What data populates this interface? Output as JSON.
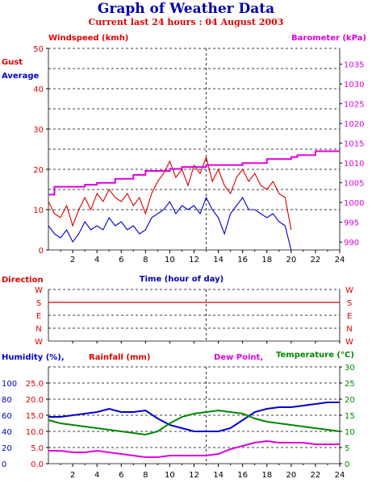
{
  "page": {
    "title": "Graph of Weather Data",
    "subtitle": "Current last 24 hours : 04 August 2003"
  },
  "colors": {
    "gust": "#dd0000",
    "average": "#0000cc",
    "barometer": "#dd00dd",
    "direction": "#dd0000",
    "humidity": "#0000cc",
    "rainfall": "#dd0000",
    "dewpoint": "#dd00dd",
    "temperature": "#008800"
  },
  "chart_data": [
    {
      "type": "line",
      "xlabel": "Time (hour of day)",
      "left_axis_title": "Windspeed (kmh)",
      "right_axis_title": "Barometer (kPa)",
      "series_labels": {
        "gust": "Gust",
        "average": "Average"
      },
      "x_ticks": [
        2,
        4,
        6,
        8,
        10,
        12,
        14,
        16,
        18,
        20,
        22,
        24
      ],
      "y_left_ticks": [
        0,
        10,
        20,
        30,
        40,
        50
      ],
      "y_left_range": [
        0,
        50
      ],
      "y_right_ticks": [
        990,
        995,
        1000,
        1005,
        1010,
        1015,
        1020,
        1025,
        1030,
        1035
      ],
      "y_right_range": [
        988,
        1039
      ],
      "x_range": [
        0,
        24
      ],
      "current_time_marker": 13,
      "gust": {
        "x": [
          0,
          0.5,
          1,
          1.5,
          2,
          2.5,
          3,
          3.5,
          4,
          4.5,
          5,
          5.5,
          6,
          6.5,
          7,
          7.5,
          8,
          8.5,
          9,
          9.5,
          10,
          10.5,
          11,
          11.5,
          12,
          12.5,
          13,
          13.5,
          14,
          14.5,
          15,
          15.5,
          16,
          16.5,
          17,
          17.5,
          18,
          18.5,
          19,
          19.5,
          20
        ],
        "values": [
          12,
          9,
          8,
          11,
          6,
          10,
          13,
          10,
          14,
          12,
          15,
          13,
          12,
          14,
          11,
          13,
          9,
          14,
          17,
          19,
          22,
          18,
          20,
          16,
          21,
          19,
          23,
          17,
          20,
          16,
          14,
          18,
          20,
          17,
          19,
          16,
          15,
          17,
          14,
          13,
          5
        ]
      },
      "average": {
        "x": [
          0,
          0.5,
          1,
          1.5,
          2,
          2.5,
          3,
          3.5,
          4,
          4.5,
          5,
          5.5,
          6,
          6.5,
          7,
          7.5,
          8,
          8.5,
          9,
          9.5,
          10,
          10.5,
          11,
          11.5,
          12,
          12.5,
          13,
          13.5,
          14,
          14.5,
          15,
          15.5,
          16,
          16.5,
          17,
          17.5,
          18,
          18.5,
          19,
          19.5,
          20
        ],
        "values": [
          6,
          4,
          3,
          5,
          2,
          4,
          7,
          5,
          6,
          5,
          8,
          6,
          7,
          5,
          6,
          4,
          5,
          8,
          9,
          10,
          12,
          9,
          11,
          10,
          11,
          9,
          13,
          10,
          8,
          4,
          9,
          11,
          13,
          10,
          10,
          9,
          8,
          9,
          7,
          6,
          0
        ]
      },
      "barometer": {
        "x": [
          0,
          0.5,
          1,
          2.5,
          3,
          3.5,
          4,
          5,
          5.5,
          6,
          7,
          7.5,
          8,
          10,
          11,
          12,
          13,
          15,
          16,
          17,
          18,
          19,
          20,
          20.5,
          22,
          24
        ],
        "values": [
          1002,
          1004,
          1004,
          1004,
          1004.5,
          1004.5,
          1005,
          1005,
          1006,
          1006,
          1007,
          1007,
          1008,
          1008.5,
          1009,
          1009,
          1009.5,
          1009.5,
          1010,
          1010,
          1011,
          1011,
          1011.5,
          1012,
          1013,
          1013
        ]
      }
    },
    {
      "type": "line",
      "title": "Direction",
      "y_ticks": [
        "W",
        "S",
        "E",
        "N",
        "W"
      ],
      "right_y_ticks": [
        "W",
        "S",
        "E",
        "N",
        "W"
      ],
      "series": [
        {
          "name": "Direction",
          "x": [
            0,
            1,
            2,
            3,
            4,
            5,
            6,
            7,
            8,
            9,
            10,
            11,
            12,
            13,
            14,
            15,
            16,
            17,
            18,
            19,
            20,
            21,
            22,
            23,
            24
          ],
          "values": [
            "S",
            "S",
            "S",
            "S",
            "S",
            "S",
            "S",
            "S",
            "S",
            "S",
            "S",
            "S",
            "S",
            "S",
            "S",
            "S",
            "S",
            "S",
            "S",
            "S",
            "S",
            "S",
            "S",
            "S",
            "S"
          ]
        }
      ]
    },
    {
      "type": "line",
      "x_ticks": [
        2,
        4,
        6,
        8,
        10,
        12,
        14,
        16,
        18,
        20,
        22,
        24
      ],
      "x_range": [
        0,
        24
      ],
      "labels": {
        "humidity": "Humidity (%),",
        "rainfall": "Rainfall (mm)",
        "dewpoint": "Dew Point,",
        "temperature": "Temperature (°C)"
      },
      "humidity_ticks": [
        0,
        20,
        40,
        60,
        80,
        100
      ],
      "rainfall_ticks": [
        "0.0",
        "5.0",
        "10.0",
        "15.0",
        "20.0",
        "25.0"
      ],
      "temp_ticks": [
        0,
        5,
        10,
        15,
        20,
        25,
        30
      ],
      "temp_range": [
        0,
        30
      ],
      "humidity": {
        "x": [
          0,
          1,
          2,
          3,
          4,
          5,
          6,
          7,
          8,
          9,
          10,
          11,
          12,
          13,
          14,
          15,
          16,
          17,
          18,
          19,
          20,
          21,
          22,
          23,
          24
        ],
        "values_celsius_axis": [
          14.5,
          14.5,
          15,
          15.5,
          16,
          17,
          16,
          16,
          16.5,
          14,
          12,
          11,
          10,
          10,
          10,
          11,
          13.5,
          16,
          17,
          17.5,
          17.5,
          18,
          18.5,
          19,
          19
        ]
      },
      "temperature": {
        "x": [
          0,
          1,
          2,
          3,
          4,
          5,
          6,
          7,
          8,
          9,
          10,
          11,
          12,
          13,
          14,
          15,
          16,
          17,
          18,
          19,
          20,
          21,
          22,
          23,
          24
        ],
        "values": [
          13.5,
          12.5,
          12,
          11.5,
          11,
          10.5,
          10,
          9.5,
          9,
          10,
          12.5,
          14.5,
          15.5,
          16,
          16.5,
          16,
          15.5,
          14,
          13,
          12.5,
          12,
          11.5,
          11,
          10.5,
          10
        ]
      },
      "dewpoint": {
        "x": [
          0,
          1,
          2,
          3,
          4,
          5,
          6,
          7,
          8,
          9,
          10,
          11,
          12,
          13,
          14,
          15,
          16,
          17,
          18,
          19,
          20,
          21,
          22,
          23,
          24
        ],
        "values": [
          4,
          4,
          3.5,
          3.5,
          4,
          3.5,
          3,
          2.5,
          2,
          2,
          2.5,
          2.5,
          2.5,
          2.5,
          3,
          4.5,
          5.5,
          6.5,
          7,
          6.5,
          6.5,
          6.5,
          6,
          6,
          6
        ]
      }
    }
  ]
}
